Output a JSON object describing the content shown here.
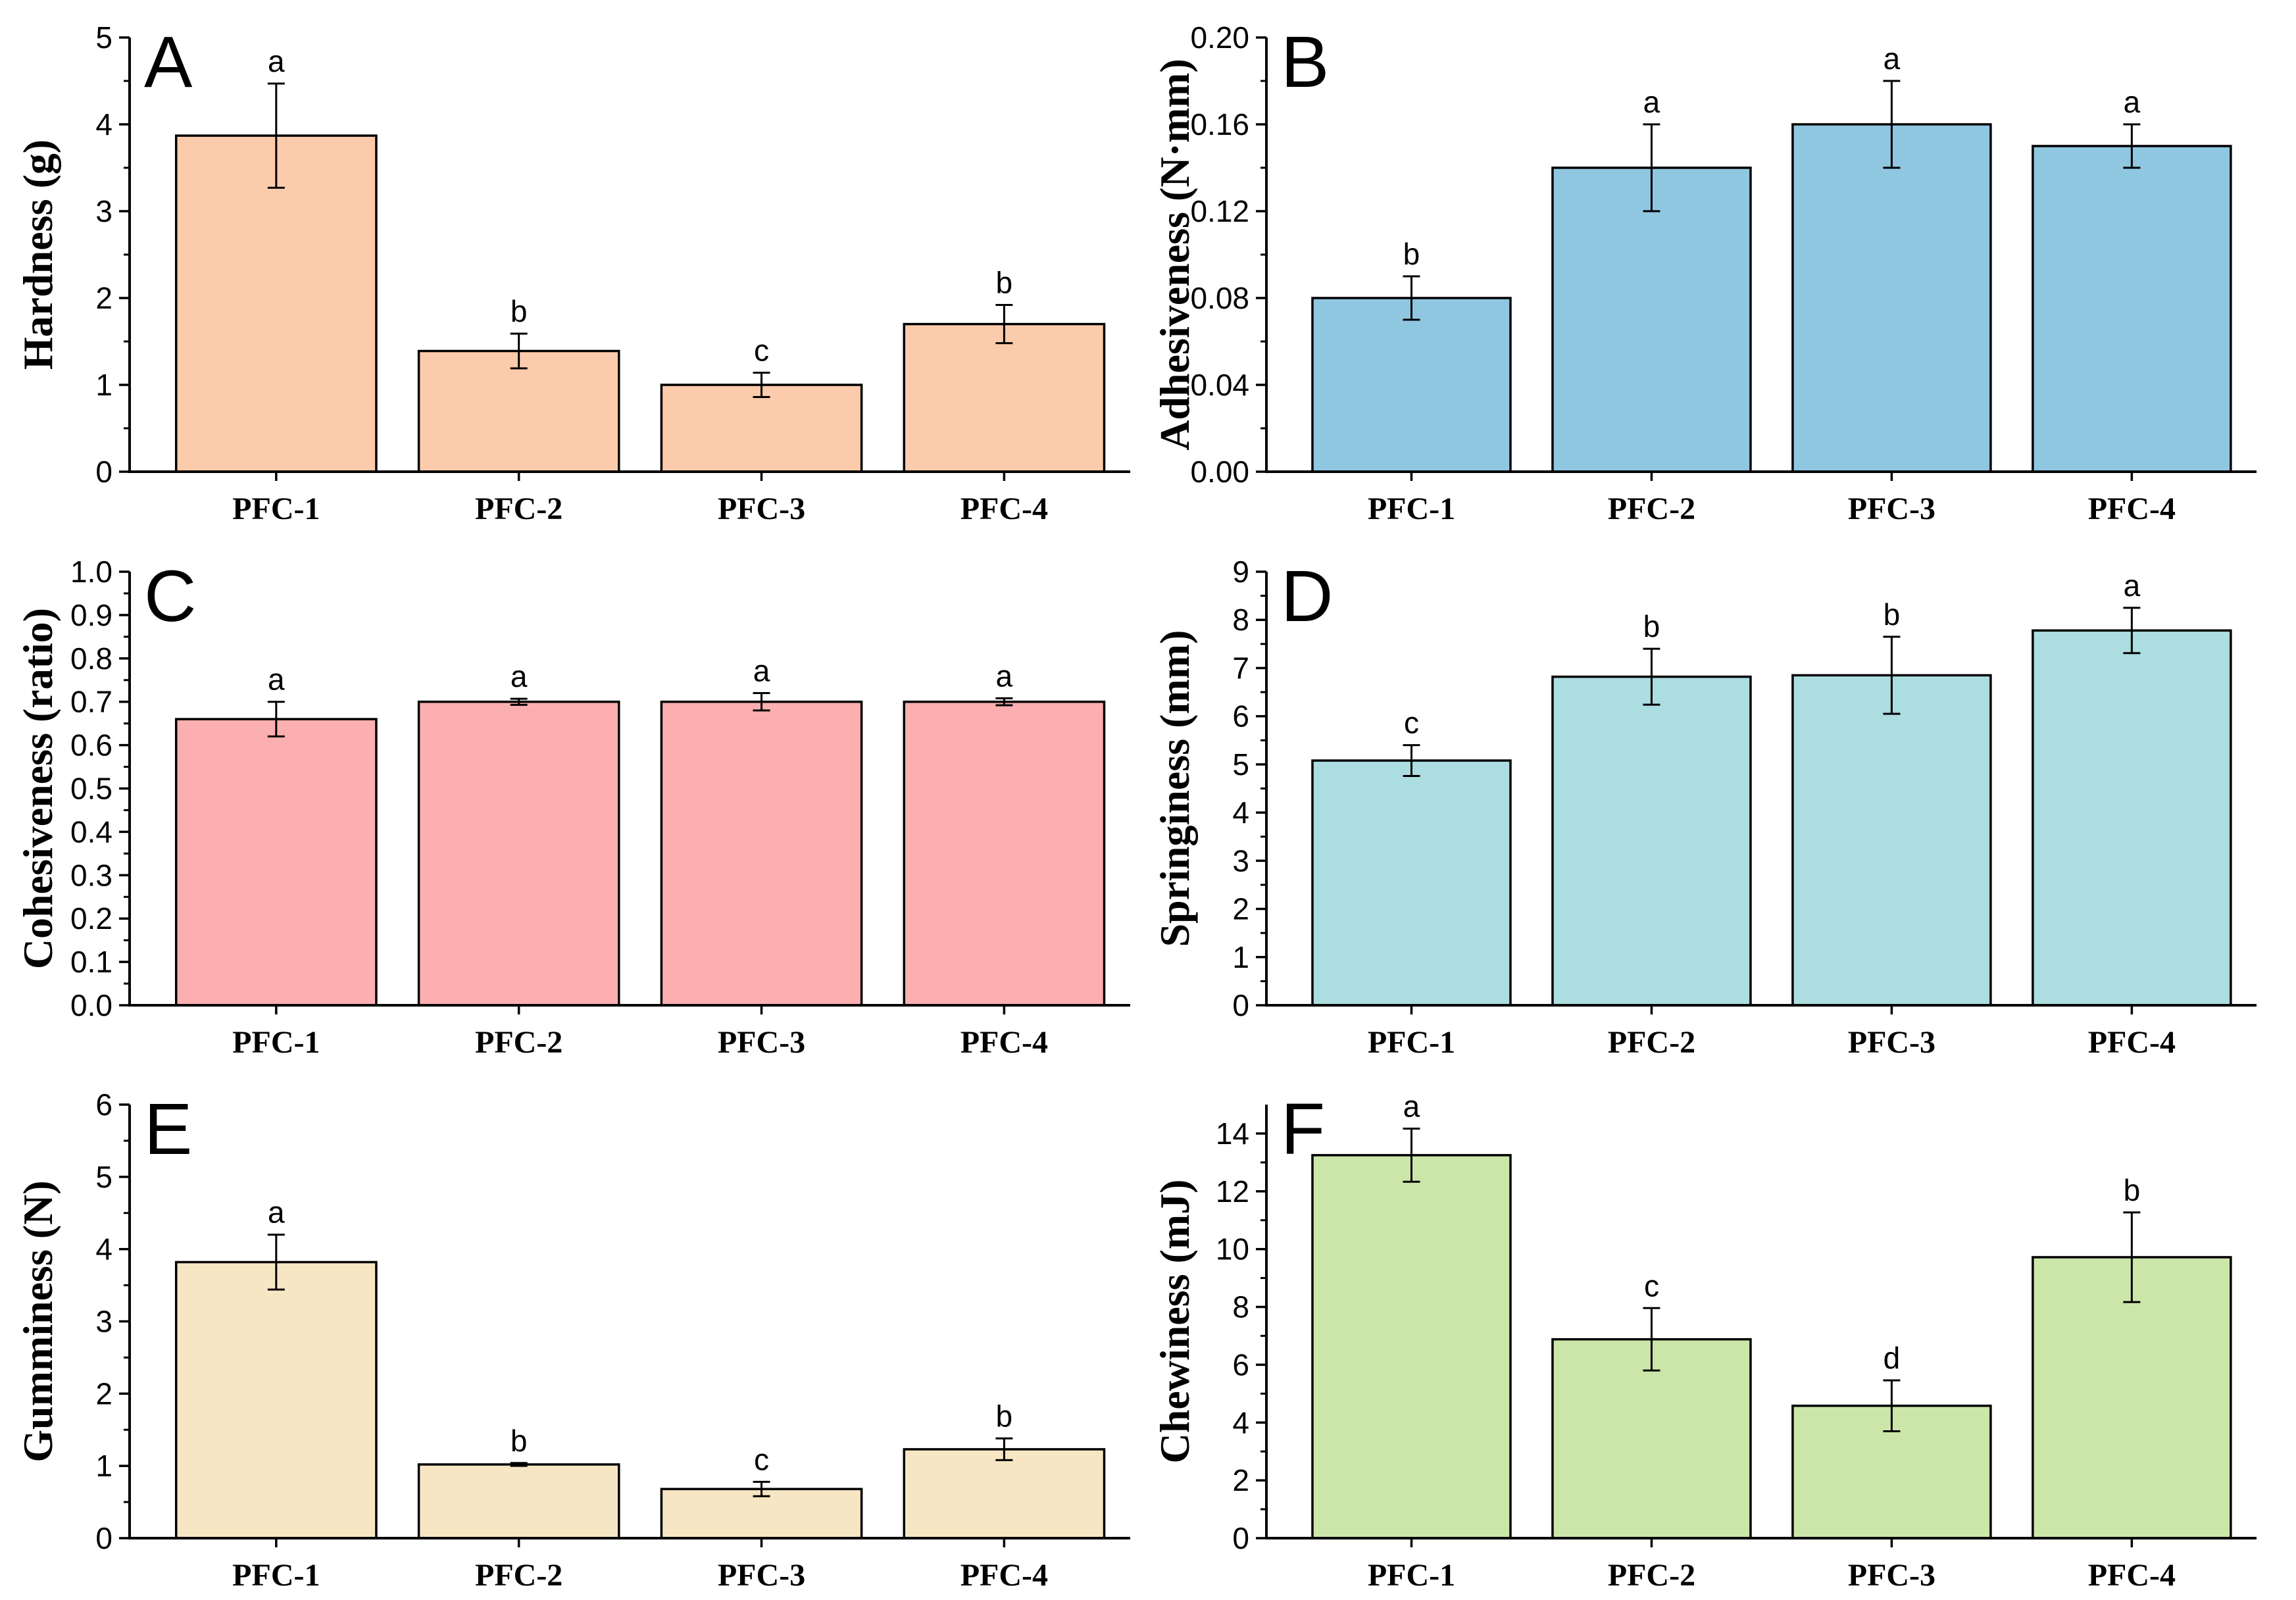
{
  "chart_data": [
    {
      "type": "bar",
      "panel": "A",
      "ylabel": "Hardness (g)",
      "categories": [
        "PFC-1",
        "PFC-2",
        "PFC-3",
        "PFC-4"
      ],
      "values": [
        3.87,
        1.39,
        1.0,
        1.7
      ],
      "errors": [
        0.6,
        0.2,
        0.14,
        0.22
      ],
      "letters": [
        "a",
        "b",
        "c",
        "b"
      ],
      "ylim": [
        0,
        5
      ],
      "yticks": [
        0,
        1,
        2,
        3,
        4,
        5
      ],
      "ytick_labels": [
        "0",
        "1",
        "2",
        "3",
        "4",
        "5"
      ],
      "color": "#FCCBAB"
    },
    {
      "type": "bar",
      "panel": "B",
      "ylabel": "Adhesiveness (N·mm)",
      "categories": [
        "PFC-1",
        "PFC-2",
        "PFC-3",
        "PFC-4"
      ],
      "values": [
        0.08,
        0.14,
        0.16,
        0.15
      ],
      "errors": [
        0.01,
        0.02,
        0.02,
        0.01
      ],
      "letters": [
        "b",
        "a",
        "a",
        "a"
      ],
      "ylim": [
        0,
        0.2
      ],
      "yticks": [
        0,
        0.04,
        0.08,
        0.12,
        0.16,
        0.2
      ],
      "ytick_labels": [
        "0.00",
        "0.04",
        "0.08",
        "0.12",
        "0.16",
        "0.20"
      ],
      "color": "#90C7E0"
    },
    {
      "type": "bar",
      "panel": "C",
      "ylabel": "Cohesiveness (ratio)",
      "categories": [
        "PFC-1",
        "PFC-2",
        "PFC-3",
        "PFC-4"
      ],
      "values": [
        0.66,
        0.7,
        0.7,
        0.7
      ],
      "errors": [
        0.04,
        0.007,
        0.02,
        0.008
      ],
      "letters": [
        "a",
        "a",
        "a",
        "a"
      ],
      "ylim": [
        0,
        1.0
      ],
      "yticks": [
        0,
        0.1,
        0.2,
        0.3,
        0.4,
        0.5,
        0.6,
        0.7,
        0.8,
        0.9,
        1.0
      ],
      "ytick_labels": [
        "0.0",
        "0.1",
        "0.2",
        "0.3",
        "0.4",
        "0.5",
        "0.6",
        "0.7",
        "0.8",
        "0.9",
        "1.0"
      ],
      "color": "#FCAFB0"
    },
    {
      "type": "bar",
      "panel": "D",
      "ylabel": "Springiness (mm)",
      "categories": [
        "PFC-1",
        "PFC-2",
        "PFC-3",
        "PFC-4"
      ],
      "values": [
        5.08,
        6.82,
        6.85,
        7.78
      ],
      "errors": [
        0.32,
        0.58,
        0.8,
        0.47
      ],
      "letters": [
        "c",
        "b",
        "b",
        "a"
      ],
      "ylim": [
        0,
        9
      ],
      "yticks": [
        0,
        1,
        2,
        3,
        4,
        5,
        6,
        7,
        8,
        9
      ],
      "ytick_labels": [
        "0",
        "1",
        "2",
        "3",
        "4",
        "5",
        "6",
        "7",
        "8",
        "9"
      ],
      "color": "#ACDDE0"
    },
    {
      "type": "bar",
      "panel": "E",
      "ylabel": "Gumminess (N)",
      "categories": [
        "PFC-1",
        "PFC-2",
        "PFC-3",
        "PFC-4"
      ],
      "values": [
        3.82,
        1.02,
        0.68,
        1.23
      ],
      "errors": [
        0.38,
        0.02,
        0.1,
        0.15
      ],
      "letters": [
        "a",
        "b",
        "c",
        "b"
      ],
      "ylim": [
        0,
        6
      ],
      "yticks": [
        0,
        1,
        2,
        3,
        4,
        5,
        6
      ],
      "ytick_labels": [
        "0",
        "1",
        "2",
        "3",
        "4",
        "5",
        "6"
      ],
      "color": "#F6E6C3"
    },
    {
      "type": "bar",
      "panel": "F",
      "ylabel": "Chewiness (mJ)",
      "categories": [
        "PFC-1",
        "PFC-2",
        "PFC-3",
        "PFC-4"
      ],
      "values": [
        13.25,
        6.88,
        4.58,
        9.72
      ],
      "errors": [
        0.92,
        1.08,
        0.88,
        1.55
      ],
      "letters": [
        "a",
        "c",
        "d",
        "b"
      ],
      "ylim": [
        0,
        15
      ],
      "yticks": [
        0,
        2,
        4,
        6,
        8,
        10,
        12,
        14
      ],
      "ytick_labels": [
        "0",
        "2",
        "4",
        "6",
        "8",
        "10",
        "12",
        "14"
      ],
      "color": "#CCE6AA"
    }
  ]
}
